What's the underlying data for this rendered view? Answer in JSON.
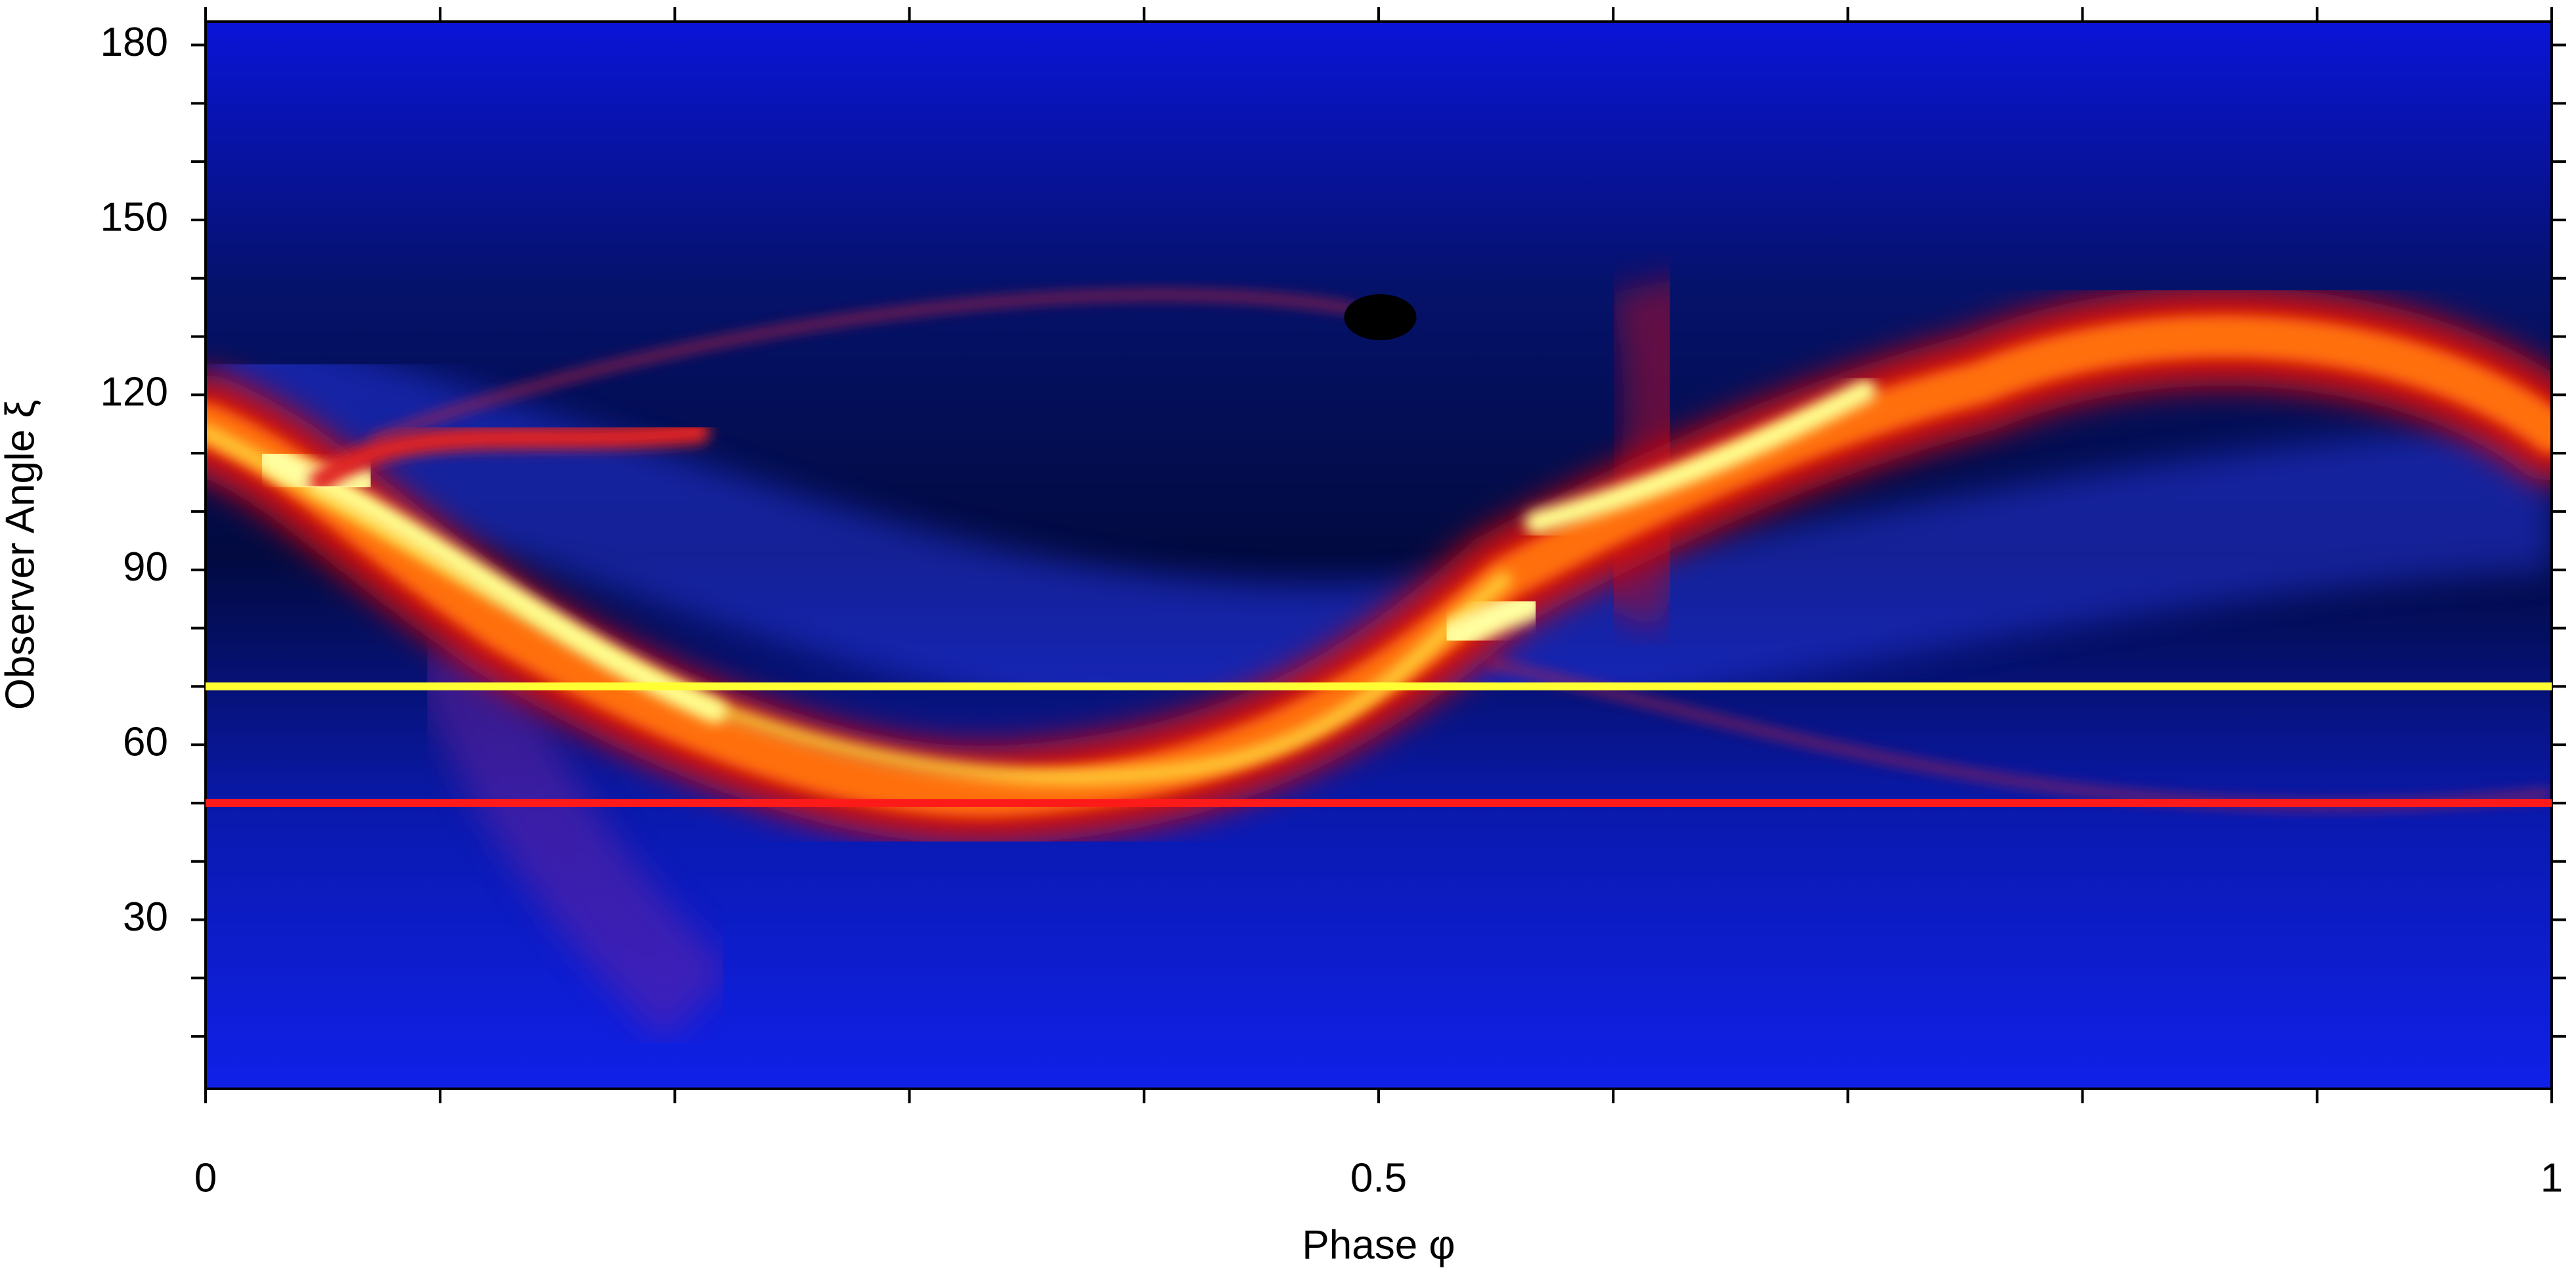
{
  "chart_data": {
    "type": "heatmap",
    "x_label": "Phase φ",
    "y_label": "Observer Angle ξ",
    "xlim": [
      0,
      1
    ],
    "ylim": [
      1,
      184
    ],
    "xticks": [
      0,
      0.5,
      1
    ],
    "yticks": [
      30,
      60,
      90,
      120,
      150,
      180
    ],
    "xminorticks": [
      0.1,
      0.2,
      0.3,
      0.4,
      0.6,
      0.7,
      0.8,
      0.9
    ],
    "yminorticks": [
      10,
      20,
      40,
      50,
      70,
      80,
      100,
      110,
      130,
      140,
      160,
      170
    ],
    "hlines": [
      {
        "value": 70,
        "color": "#ffff33"
      },
      {
        "value": 50,
        "color": "#ff1a1a"
      }
    ]
  }
}
